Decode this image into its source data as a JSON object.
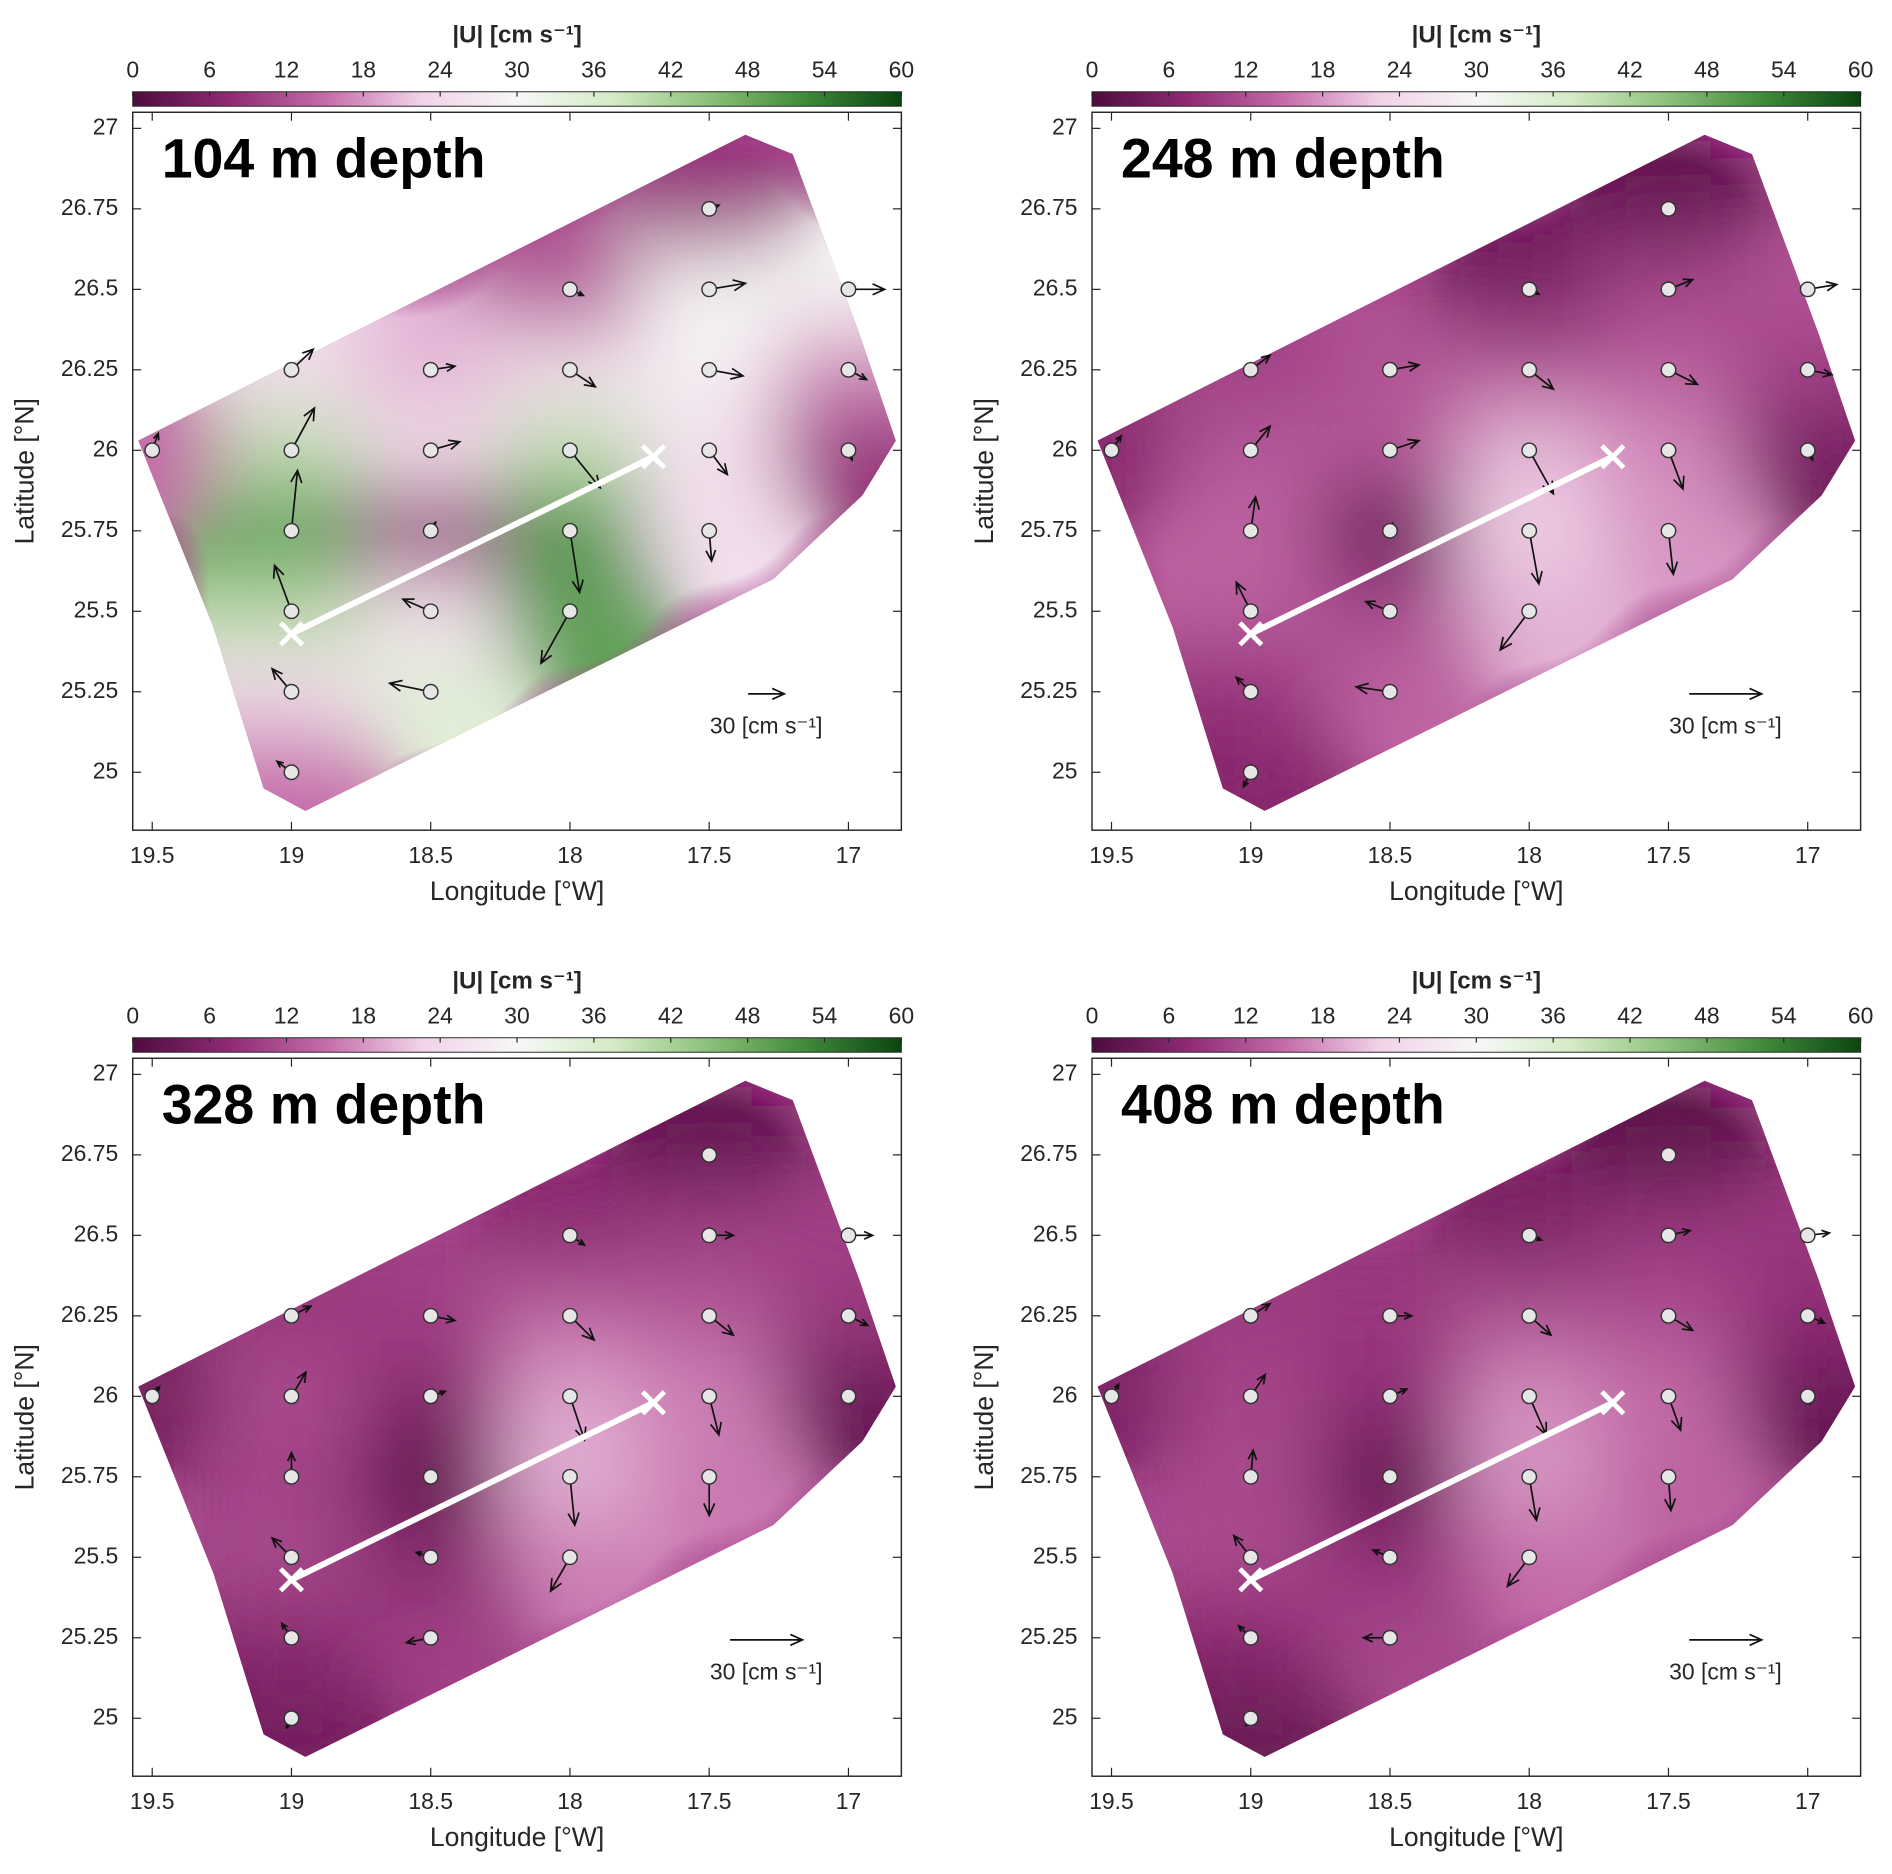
{
  "chart_data": [
    {
      "type": "vector_field",
      "title": "104 m depth",
      "xlabel": "Longitude [°W]",
      "ylabel": "Latitude [°N]",
      "xlim": [
        19.57,
        16.81
      ],
      "xticks": [
        19.5,
        19,
        18.5,
        18,
        17.5,
        17
      ],
      "ylim": [
        24.82,
        27.05
      ],
      "yticks": [
        25,
        25.25,
        25.5,
        25.75,
        26,
        26.25,
        26.5,
        26.75,
        27
      ],
      "colorbar": {
        "label": "|U| [cm s⁻¹]",
        "lim": [
          0,
          60
        ],
        "ticks": [
          0,
          6,
          12,
          18,
          24,
          30,
          36,
          42,
          48,
          54,
          60
        ],
        "colors": [
          "#4d0c3e",
          "#8e2a73",
          "#c46ba8",
          "#f1d3e8",
          "#f7f7f7",
          "#d3ebc4",
          "#8cc07a",
          "#3f8a3a",
          "#0b4510"
        ]
      },
      "grid_lon": [
        19.5,
        19,
        18.5,
        18,
        17.5,
        17
      ],
      "grid_lat": [
        25,
        25.25,
        25.5,
        25.75,
        26,
        26.25,
        26.5,
        26.75
      ],
      "u": [
        [
          null,
          -12,
          null,
          null,
          null,
          null
        ],
        [
          null,
          -16,
          -34,
          null,
          null,
          null
        ],
        [
          null,
          -14,
          -23,
          -24,
          null,
          null
        ],
        [
          null,
          5,
          4,
          8,
          2,
          null
        ],
        [
          5,
          19,
          24,
          25,
          15,
          3
        ],
        [
          null,
          18,
          20,
          21,
          28,
          15
        ],
        [
          null,
          null,
          null,
          11,
          30,
          30
        ],
        [
          null,
          null,
          null,
          null,
          8,
          null
        ]
      ],
      "v": [
        [
          null,
          9,
          null,
          null,
          null,
          null
        ],
        [
          null,
          19,
          7,
          null,
          null,
          null
        ],
        [
          null,
          38,
          10,
          -43,
          null,
          null
        ],
        [
          null,
          50,
          7,
          -51,
          -25,
          null
        ],
        [
          14,
          35,
          7,
          -31,
          -20,
          -8
        ],
        [
          null,
          17,
          3,
          -14,
          -5,
          -8
        ],
        [
          null,
          null,
          null,
          -5,
          5,
          0
        ],
        [
          null,
          null,
          null,
          null,
          3,
          null
        ]
      ],
      "domain": {
        "lon": [
          19.55,
          17.37,
          17.2,
          16.96,
          16.83,
          16.95,
          17.27,
          18.95,
          19.1,
          19.28
        ],
        "lat": [
          26.03,
          26.98,
          26.92,
          26.36,
          26.03,
          25.86,
          25.6,
          24.88,
          24.95,
          25.45
        ]
      },
      "section": {
        "lon": [
          19,
          17.7
        ],
        "lat": [
          25.43,
          25.98
        ]
      },
      "scale_arrow": {
        "value": 30,
        "label": "30 [cm s⁻¹]"
      }
    },
    {
      "type": "vector_field",
      "title": "248 m depth",
      "xlabel": "Longitude [°W]",
      "ylabel": "Latitude [°N]",
      "xlim": [
        19.57,
        16.81
      ],
      "xticks": [
        19.5,
        19,
        18.5,
        18,
        17.5,
        17
      ],
      "ylim": [
        24.82,
        27.05
      ],
      "yticks": [
        25,
        25.25,
        25.5,
        25.75,
        26,
        26.25,
        26.5,
        26.75,
        27
      ],
      "colorbar": {
        "label": "|U| [cm s⁻¹]",
        "lim": [
          0,
          60
        ],
        "ticks": [
          0,
          6,
          12,
          18,
          24,
          30,
          36,
          42,
          48,
          54,
          60
        ],
        "colors": [
          "#4d0c3e",
          "#8e2a73",
          "#c46ba8",
          "#f1d3e8",
          "#f7f7f7",
          "#d3ebc4",
          "#8cc07a",
          "#3f8a3a",
          "#0b4510"
        ]
      },
      "grid_lon": [
        19.5,
        19,
        18.5,
        18,
        17.5,
        17
      ],
      "grid_lat": [
        25,
        25.25,
        25.5,
        25.75,
        26,
        26.25,
        26.5,
        26.75
      ],
      "u": [
        [
          null,
          -3,
          null,
          null,
          null,
          null
        ],
        [
          null,
          -6,
          -14,
          null,
          null,
          null
        ],
        [
          null,
          -6,
          -10,
          -12,
          null,
          null
        ],
        [
          null,
          2,
          1,
          4,
          2,
          null
        ],
        [
          4,
          8,
          12,
          10,
          6,
          2
        ],
        [
          null,
          8,
          12,
          10,
          12,
          10
        ],
        [
          null,
          null,
          null,
          4,
          10,
          12
        ],
        [
          null,
          null,
          null,
          null,
          2,
          null
        ]
      ],
      "v": [
        [
          null,
          -6,
          null,
          null,
          null,
          null
        ],
        [
          null,
          6,
          2,
          null,
          null,
          null
        ],
        [
          null,
          12,
          4,
          -16,
          null,
          null
        ],
        [
          null,
          14,
          3,
          -22,
          -18,
          null
        ],
        [
          6,
          10,
          4,
          -18,
          -16,
          -4
        ],
        [
          null,
          6,
          2,
          -8,
          -6,
          -2
        ],
        [
          null,
          null,
          null,
          -2,
          4,
          2
        ],
        [
          null,
          null,
          null,
          null,
          2,
          null
        ]
      ],
      "domain": {
        "lon": [
          19.55,
          17.37,
          17.2,
          16.96,
          16.83,
          16.95,
          17.27,
          18.95,
          19.1,
          19.28
        ],
        "lat": [
          26.03,
          26.98,
          26.92,
          26.36,
          26.03,
          25.86,
          25.6,
          24.88,
          24.95,
          25.45
        ]
      },
      "section": {
        "lon": [
          19,
          17.7
        ],
        "lat": [
          25.43,
          25.98
        ]
      },
      "scale_arrow": {
        "value": 30,
        "label": "30 [cm s⁻¹]"
      }
    },
    {
      "type": "vector_field",
      "title": "328 m depth",
      "xlabel": "Longitude [°W]",
      "ylabel": "Latitude [°N]",
      "xlim": [
        19.57,
        16.81
      ],
      "xticks": [
        19.5,
        19,
        18.5,
        18,
        17.5,
        17
      ],
      "ylim": [
        24.82,
        27.05
      ],
      "yticks": [
        25,
        25.25,
        25.5,
        25.75,
        26,
        26.25,
        26.5,
        26.75,
        27
      ],
      "colorbar": {
        "label": "|U| [cm s⁻¹]",
        "lim": [
          0,
          60
        ],
        "ticks": [
          0,
          6,
          12,
          18,
          24,
          30,
          36,
          42,
          48,
          54,
          60
        ],
        "colors": [
          "#4d0c3e",
          "#8e2a73",
          "#c46ba8",
          "#f1d3e8",
          "#f7f7f7",
          "#d3ebc4",
          "#8cc07a",
          "#3f8a3a",
          "#0b4510"
        ]
      },
      "grid_lon": [
        19.5,
        19,
        18.5,
        18,
        17.5,
        17
      ],
      "grid_lat": [
        25,
        25.25,
        25.5,
        25.75,
        26,
        26.25,
        26.5,
        26.75
      ],
      "u": [
        [
          null,
          -2,
          null,
          null,
          null,
          null
        ],
        [
          null,
          -4,
          -10,
          null,
          null,
          null
        ],
        [
          null,
          -8,
          -6,
          -8,
          null,
          null
        ],
        [
          null,
          0,
          0,
          2,
          0,
          null
        ],
        [
          3,
          6,
          6,
          6,
          4,
          1
        ],
        [
          null,
          8,
          10,
          10,
          10,
          8
        ],
        [
          null,
          null,
          null,
          6,
          10,
          10
        ],
        [
          null,
          null,
          null,
          null,
          2,
          null
        ]
      ],
      "v": [
        [
          null,
          -4,
          null,
          null,
          null,
          null
        ],
        [
          null,
          6,
          -2,
          null,
          null,
          null
        ],
        [
          null,
          8,
          2,
          -14,
          null,
          null
        ],
        [
          null,
          10,
          2,
          -20,
          -16,
          null
        ],
        [
          4,
          10,
          2,
          -18,
          -16,
          -3
        ],
        [
          null,
          4,
          -2,
          -10,
          -8,
          -4
        ],
        [
          null,
          null,
          null,
          -4,
          0,
          0
        ],
        [
          null,
          null,
          null,
          null,
          -2,
          null
        ]
      ],
      "domain": {
        "lon": [
          19.55,
          17.37,
          17.2,
          16.96,
          16.83,
          16.95,
          17.27,
          18.95,
          19.1,
          19.28
        ],
        "lat": [
          26.03,
          26.98,
          26.92,
          26.36,
          26.03,
          25.86,
          25.6,
          24.88,
          24.95,
          25.45
        ]
      },
      "section": {
        "lon": [
          19,
          17.7
        ],
        "lat": [
          25.43,
          25.98
        ]
      },
      "scale_arrow": {
        "value": 30,
        "label": "30 [cm s⁻¹]"
      }
    },
    {
      "type": "vector_field",
      "title": "408 m depth",
      "xlabel": "Longitude [°W]",
      "ylabel": "Latitude [°N]",
      "xlim": [
        19.57,
        16.81
      ],
      "xticks": [
        19.5,
        19,
        18.5,
        18,
        17.5,
        17
      ],
      "ylim": [
        24.82,
        27.05
      ],
      "yticks": [
        25,
        25.25,
        25.5,
        25.75,
        26,
        26.25,
        26.5,
        26.75,
        27
      ],
      "colorbar": {
        "label": "|U| [cm s⁻¹]",
        "lim": [
          0,
          60
        ],
        "ticks": [
          0,
          6,
          12,
          18,
          24,
          30,
          36,
          42,
          48,
          54,
          60
        ],
        "colors": [
          "#4d0c3e",
          "#8e2a73",
          "#c46ba8",
          "#f1d3e8",
          "#f7f7f7",
          "#d3ebc4",
          "#8cc07a",
          "#3f8a3a",
          "#0b4510"
        ]
      },
      "grid_lon": [
        19.5,
        19,
        18.5,
        18,
        17.5,
        17
      ],
      "grid_lat": [
        25,
        25.25,
        25.5,
        25.75,
        26,
        26.25,
        26.5,
        26.75
      ],
      "u": [
        [
          null,
          -2,
          null,
          null,
          null,
          null
        ],
        [
          null,
          -5,
          -11,
          null,
          null,
          null
        ],
        [
          null,
          -7,
          -7,
          -9,
          null,
          null
        ],
        [
          null,
          1,
          0,
          3,
          1,
          null
        ],
        [
          3,
          6,
          7,
          7,
          5,
          1
        ],
        [
          null,
          8,
          9,
          9,
          10,
          7
        ],
        [
          null,
          null,
          null,
          5,
          9,
          9
        ],
        [
          null,
          null,
          null,
          null,
          2,
          null
        ]
      ],
      "v": [
        [
          null,
          -3,
          null,
          null,
          null,
          null
        ],
        [
          null,
          5,
          0,
          null,
          null,
          null
        ],
        [
          null,
          9,
          3,
          -12,
          null,
          null
        ],
        [
          null,
          11,
          2,
          -18,
          -14,
          null
        ],
        [
          5,
          9,
          3,
          -16,
          -14,
          -3
        ],
        [
          null,
          5,
          0,
          -8,
          -6,
          -3
        ],
        [
          null,
          null,
          null,
          -2,
          2,
          1
        ],
        [
          null,
          null,
          null,
          null,
          0,
          null
        ]
      ],
      "domain": {
        "lon": [
          19.55,
          17.37,
          17.2,
          16.96,
          16.83,
          16.95,
          17.27,
          18.95,
          19.1,
          19.28
        ],
        "lat": [
          26.03,
          26.98,
          26.92,
          26.36,
          26.03,
          25.86,
          25.6,
          24.88,
          24.95,
          25.45
        ]
      },
      "section": {
        "lon": [
          19,
          17.7
        ],
        "lat": [
          25.43,
          25.98
        ]
      },
      "scale_arrow": {
        "value": 30,
        "label": "30 [cm s⁻¹]"
      }
    }
  ]
}
